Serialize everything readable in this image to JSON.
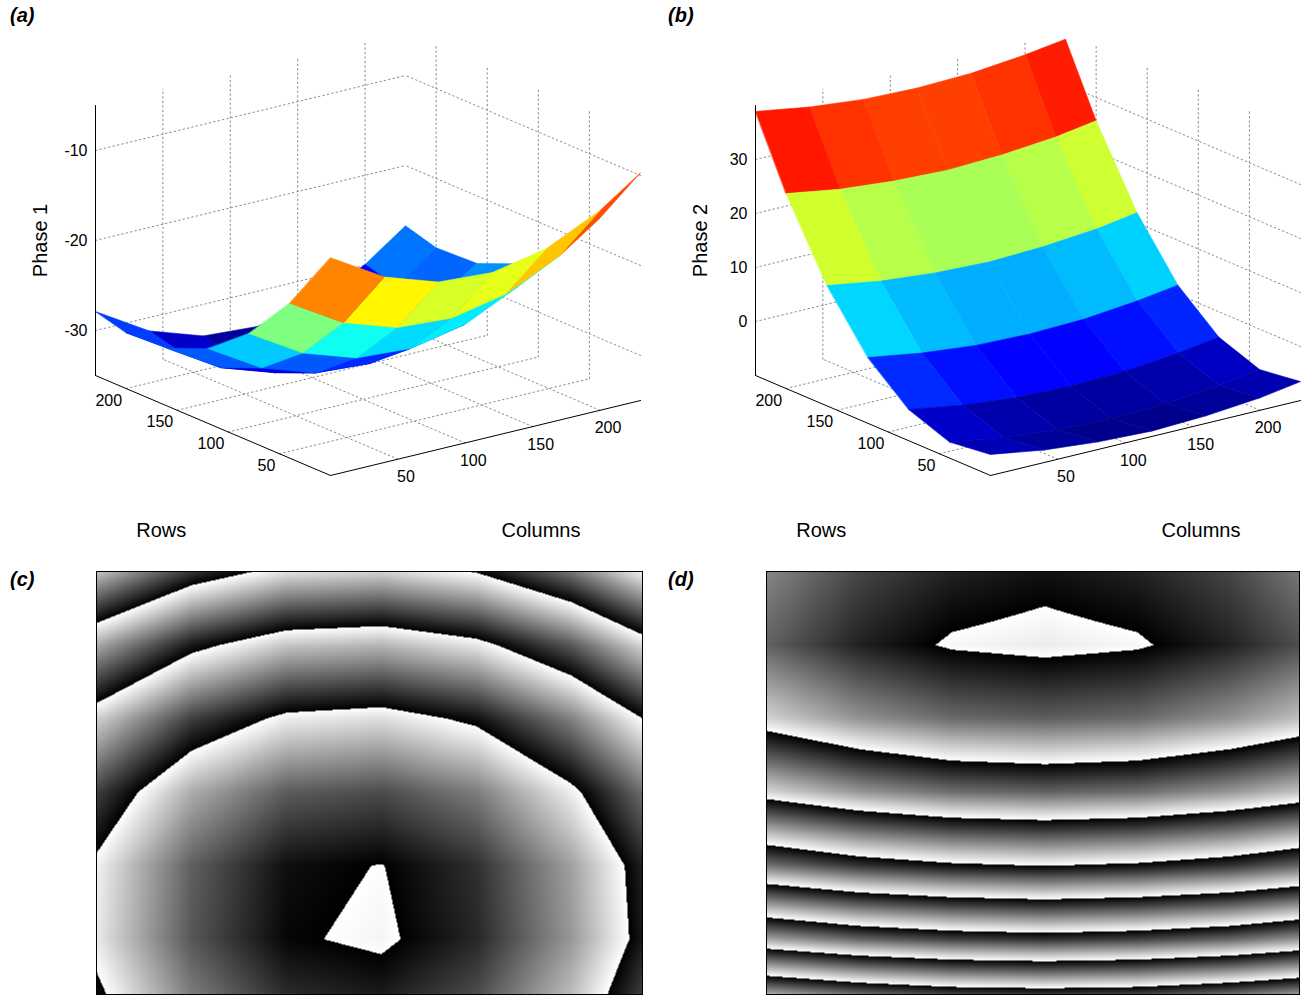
{
  "chart_data": [
    {
      "type": "surface",
      "panel": "(a)",
      "wrapped_panel": "(c)",
      "xlabel": "Columns",
      "ylabel": "Rows",
      "zlabel": "Phase 1",
      "color": "jet",
      "grid": true,
      "x": [
        0,
        40,
        80,
        120,
        160,
        200,
        230
      ],
      "y": [
        0,
        40,
        80,
        120,
        160,
        200,
        230
      ],
      "z": [
        [
          -10.8,
          -14.4,
          -16.4,
          -16.8,
          -15.6,
          -12.8,
          -9.7
        ],
        [
          -17.8,
          -21.4,
          -23.4,
          -23.8,
          -22.6,
          -19.8,
          -16.7
        ],
        [
          -23.1,
          -26.7,
          -28.7,
          -29.1,
          -27.9,
          -25.1,
          -22.0
        ],
        [
          -26.7,
          -30.3,
          -32.3,
          -32.7,
          -31.5,
          -28.7,
          -25.6
        ],
        [
          -28.6,
          -32.2,
          -34.2,
          -34.6,
          -33.4,
          -30.6,
          -27.5
        ],
        [
          -28.8,
          -32.4,
          -34.4,
          -34.8,
          -33.6,
          -30.8,
          -27.7
        ],
        [
          -27.9,
          -31.5,
          -33.5,
          -33.9,
          -32.7,
          -29.9,
          -26.7
        ]
      ],
      "xlim": [
        0,
        230
      ],
      "ylim": [
        0,
        230
      ],
      "zlim": [
        -35,
        -5
      ],
      "xticks": [
        50,
        100,
        150,
        200
      ],
      "yticks": [
        50,
        100,
        150,
        200
      ],
      "zticks": [
        -30,
        -20,
        -10
      ]
    },
    {
      "type": "surface",
      "panel": "(b)",
      "wrapped_panel": "(d)",
      "xlabel": "Columns",
      "ylabel": "Rows",
      "zlabel": "Phase 2",
      "color": "jet",
      "grid": true,
      "x": [
        0,
        40,
        80,
        120,
        160,
        200,
        230
      ],
      "y": [
        0,
        40,
        80,
        120,
        160,
        200,
        230
      ],
      "z": [
        [
          -6.1,
          -7.7,
          -8.6,
          -9.0,
          -8.6,
          -7.7,
          -6.5
        ],
        [
          -7.0,
          -8.6,
          -9.6,
          -9.9,
          -9.6,
          -8.6,
          -7.5
        ],
        [
          -4.2,
          -5.8,
          -6.8,
          -7.1,
          -6.8,
          -5.8,
          -4.7
        ],
        [
          2.2,
          0.6,
          -0.4,
          -0.7,
          -0.4,
          0.6,
          1.7
        ],
        [
          12.3,
          10.7,
          9.8,
          9.4,
          9.8,
          10.7,
          11.9
        ],
        [
          26.1,
          24.5,
          23.6,
          23.2,
          23.6,
          24.5,
          25.7
        ],
        [
          38.9,
          37.3,
          36.3,
          36.0,
          36.3,
          37.3,
          38.4
        ]
      ],
      "xlim": [
        0,
        230
      ],
      "ylim": [
        0,
        230
      ],
      "zlim": [
        -10,
        40
      ],
      "xticks": [
        50,
        100,
        150,
        200
      ],
      "yticks": [
        50,
        100,
        150,
        200
      ],
      "zticks": [
        0,
        10,
        20,
        30
      ]
    }
  ]
}
